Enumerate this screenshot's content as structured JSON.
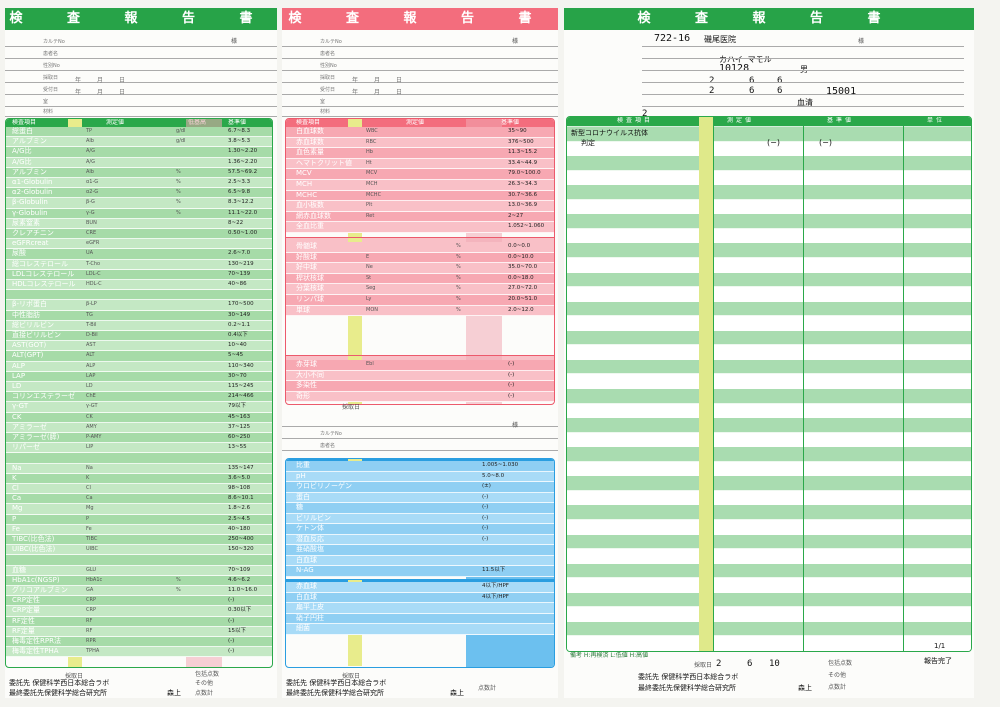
{
  "form_title": "検 査 報 告 書",
  "panel1": {
    "info_labels": [
      "カルテNo",
      "患者名",
      "性別No",
      "採取日",
      "受付日",
      "室",
      "材料"
    ],
    "date_labels": [
      "年",
      "月",
      "日"
    ],
    "sama": "様",
    "col_headers": [
      "検査項目",
      "測定値",
      "低基高",
      "基準値"
    ],
    "rows": [
      {
        "name": "総蛋白",
        "code": "TP",
        "unit": "g/dl",
        "ref": "6.7~8.3"
      },
      {
        "name": "アルブミン",
        "code": "Alb",
        "unit": "g/dl",
        "ref": "3.8~5.3"
      },
      {
        "name": "A/G比",
        "code": "A/G",
        "unit": "",
        "ref": "1.30~2.20"
      },
      {
        "name": "A/G比",
        "code": "A/G",
        "unit": "",
        "ref": "1.36~2.20"
      },
      {
        "name": "アルブミン",
        "code": "Alb",
        "unit": "%",
        "ref": "57.5~69.2"
      },
      {
        "name": "α1-Globulin",
        "code": "α1-G",
        "unit": "%",
        "ref": "2.5~3.3"
      },
      {
        "name": "α2-Globulin",
        "code": "α2-G",
        "unit": "%",
        "ref": "6.5~9.8"
      },
      {
        "name": "β-Globulin",
        "code": "β-G",
        "unit": "%",
        "ref": "8.3~12.2"
      },
      {
        "name": "γ-Globulin",
        "code": "γ-G",
        "unit": "%",
        "ref": "11.1~22.0"
      },
      {
        "name": "尿素窒素",
        "code": "BUN",
        "unit": "",
        "ref": "8~22"
      },
      {
        "name": "クレアチニン",
        "code": "CRE",
        "unit": "",
        "ref": "0.50~1.00"
      },
      {
        "name": "eGFRcreat",
        "code": "eGFR",
        "unit": "",
        "ref": ""
      },
      {
        "name": "尿酸",
        "code": "UA",
        "unit": "",
        "ref": "2.6~7.0"
      },
      {
        "name": "総コレステロール",
        "code": "T-Cho",
        "unit": "",
        "ref": "130~219"
      },
      {
        "name": "LDLコレステロール",
        "code": "LDL-C",
        "unit": "",
        "ref": "70~139"
      },
      {
        "name": "HDLコレステロール",
        "code": "HDL-C",
        "unit": "",
        "ref": "40~86"
      },
      {
        "name": "",
        "code": "",
        "unit": "",
        "ref": ""
      },
      {
        "name": "β-リポ蛋白",
        "code": "β-LP",
        "unit": "",
        "ref": "170~500"
      },
      {
        "name": "中性脂肪",
        "code": "TG",
        "unit": "",
        "ref": "30~149"
      },
      {
        "name": "総ビリルビン",
        "code": "T-Bil",
        "unit": "",
        "ref": "0.2~1.1"
      },
      {
        "name": "直接ビリルビン",
        "code": "D-Bil",
        "unit": "",
        "ref": "0.4以下"
      },
      {
        "name": "AST(GOT)",
        "code": "AST",
        "unit": "",
        "ref": "10~40"
      },
      {
        "name": "ALT(GPT)",
        "code": "ALT",
        "unit": "",
        "ref": "5~45"
      },
      {
        "name": "ALP",
        "code": "ALP",
        "unit": "",
        "ref": "110~340"
      },
      {
        "name": "LAP",
        "code": "LAP",
        "unit": "",
        "ref": "30~70"
      },
      {
        "name": "LD",
        "code": "LD",
        "unit": "",
        "ref": "115~245"
      },
      {
        "name": "コリンエステラーゼ",
        "code": "ChE",
        "unit": "",
        "ref": "214~466"
      },
      {
        "name": "γ-GT",
        "code": "γ-GT",
        "unit": "",
        "ref": "79以下"
      },
      {
        "name": "CK",
        "code": "CK",
        "unit": "",
        "ref": "45~163"
      },
      {
        "name": "アミラーゼ",
        "code": "AMY",
        "unit": "",
        "ref": "37~125"
      },
      {
        "name": "アミラーゼ(膵)",
        "code": "P-AMY",
        "unit": "",
        "ref": "60~250"
      },
      {
        "name": "リパーゼ",
        "code": "LIP",
        "unit": "",
        "ref": "13~55"
      },
      {
        "name": "",
        "code": "",
        "unit": "",
        "ref": ""
      },
      {
        "name": "Na",
        "code": "Na",
        "unit": "",
        "ref": "135~147"
      },
      {
        "name": "K",
        "code": "K",
        "unit": "",
        "ref": "3.6~5.0"
      },
      {
        "name": "Cl",
        "code": "Cl",
        "unit": "",
        "ref": "98~108"
      },
      {
        "name": "Ca",
        "code": "Ca",
        "unit": "",
        "ref": "8.6~10.1"
      },
      {
        "name": "Mg",
        "code": "Mg",
        "unit": "",
        "ref": "1.8~2.6"
      },
      {
        "name": "P",
        "code": "P",
        "unit": "",
        "ref": "2.5~4.5"
      },
      {
        "name": "Fe",
        "code": "Fe",
        "unit": "",
        "ref": "40~180"
      },
      {
        "name": "TIBC(比色法)",
        "code": "TIBC",
        "unit": "",
        "ref": "250~400"
      },
      {
        "name": "UIBC(比色法)",
        "code": "UIBC",
        "unit": "",
        "ref": "150~320"
      },
      {
        "name": "",
        "code": "",
        "unit": "",
        "ref": ""
      },
      {
        "name": "血糖",
        "code": "GLU",
        "unit": "",
        "ref": "70~109"
      },
      {
        "name": "HbA1c(NGSP)",
        "code": "HbA1c",
        "unit": "%",
        "ref": "4.6~6.2"
      },
      {
        "name": "グリコアルブミン",
        "code": "GA",
        "unit": "%",
        "ref": "11.0~16.0"
      },
      {
        "name": "CRP定性",
        "code": "CRP",
        "unit": "",
        "ref": "(-)"
      },
      {
        "name": "CRP定量",
        "code": "CRP",
        "unit": "",
        "ref": "0.30以下"
      },
      {
        "name": "RF定性",
        "code": "RF",
        "unit": "",
        "ref": "(-)"
      },
      {
        "name": "RF定量",
        "code": "RF",
        "unit": "",
        "ref": "15以下"
      },
      {
        "name": "梅毒定性RPR法",
        "code": "RPR",
        "unit": "",
        "ref": "(-)"
      },
      {
        "name": "梅毒定性TPHA",
        "code": "TPHA",
        "unit": "",
        "ref": "(-)"
      }
    ],
    "footer": {
      "saishu": "採取日",
      "itaku": "委託先 保健科学西日本総合ラボ",
      "saishu_itaku": "最終委託先保健科学総合研究所",
      "tantou": "森上",
      "tokubetsu": "点数計",
      "sonota": "その他",
      "hokatsu": "包括点数"
    }
  },
  "panel2": {
    "info_labels": [
      "カルテNo",
      "患者名",
      "性別No",
      "採取日",
      "受付日",
      "室",
      "材料"
    ],
    "date_labels": [
      "年",
      "月",
      "日"
    ],
    "sama": "様",
    "col_headers": [
      "検査項目",
      "測定値",
      "基準値"
    ],
    "rows_blood": [
      {
        "name": "白血球数",
        "code": "WBC",
        "ref": "35~90"
      },
      {
        "name": "赤血球数",
        "code": "RBC",
        "ref": "376~500"
      },
      {
        "name": "血色素量",
        "code": "Hb",
        "ref": "11.3~15.2"
      },
      {
        "name": "ヘマトクリット値",
        "code": "Ht",
        "ref": "33.4~44.9"
      },
      {
        "name": "MCV",
        "code": "MCV",
        "ref": "79.0~100.0"
      },
      {
        "name": "MCH",
        "code": "MCH",
        "ref": "26.3~34.3"
      },
      {
        "name": "MCHC",
        "code": "MCHC",
        "ref": "30.7~36.6"
      },
      {
        "name": "血小板数",
        "code": "Plt",
        "ref": "13.0~36.9"
      },
      {
        "name": "網赤血球数",
        "code": "Ret",
        "ref": "2~27"
      },
      {
        "name": "全血比重",
        "code": "",
        "ref": "1.052~1.060"
      }
    ],
    "rows_diff": [
      {
        "name": "骨髄球",
        "code": "",
        "unit": "%",
        "ref": "0.0~0.0"
      },
      {
        "name": "好酸球",
        "code": "E",
        "unit": "%",
        "ref": "0.0~10.0"
      },
      {
        "name": "好中球",
        "code": "Ne",
        "unit": "%",
        "ref": "35.0~70.0"
      },
      {
        "name": "桿状核球",
        "code": "St",
        "unit": "%",
        "ref": "0.0~18.0"
      },
      {
        "name": "分葉核球",
        "code": "Seg",
        "unit": "%",
        "ref": "27.0~72.0"
      },
      {
        "name": "リンパ球",
        "code": "Ly",
        "unit": "%",
        "ref": "20.0~51.0"
      },
      {
        "name": "単球",
        "code": "MON",
        "unit": "%",
        "ref": "2.0~12.0"
      }
    ],
    "rows_other": [
      {
        "name": "赤芽球",
        "code": "Ebl",
        "ref": "(-)"
      },
      {
        "name": "大小不同",
        "code": "",
        "ref": "(-)"
      },
      {
        "name": "多染性",
        "code": "",
        "ref": "(-)"
      },
      {
        "name": "奇形",
        "code": "",
        "ref": "(-)"
      }
    ],
    "rows_urine": [
      {
        "name": "比重",
        "ref": "1.005~1.030"
      },
      {
        "name": "pH",
        "ref": "5.0~8.0"
      },
      {
        "name": "ウロビリノーゲン",
        "ref": "(±)"
      },
      {
        "name": "蛋白",
        "ref": "(-)"
      },
      {
        "name": "糖",
        "ref": "(-)"
      },
      {
        "name": "ビリルビン",
        "ref": "(-)"
      },
      {
        "name": "ケトン体",
        "ref": "(-)"
      },
      {
        "name": "潜血反応",
        "ref": "(-)"
      },
      {
        "name": "亜硝酸塩",
        "ref": ""
      },
      {
        "name": "白血球",
        "ref": ""
      },
      {
        "name": "N-AG",
        "ref": "11.5以下"
      }
    ],
    "rows_sediment": [
      {
        "name": "赤血球",
        "ref": "4以下/HPF"
      },
      {
        "name": "白血球",
        "ref": "4以下/HPF"
      },
      {
        "name": "扁平上皮",
        "ref": ""
      },
      {
        "name": "硝子円柱",
        "ref": ""
      },
      {
        "name": "細菌",
        "ref": ""
      }
    ],
    "footer": {
      "saishu": "採取日",
      "itaku": "委託先 保健科学西日本総合ラボ",
      "saishu_itaku": "最終委託先保健科学総合研究所",
      "tantou": "森上",
      "tokubetsu": "点数計"
    }
  },
  "panel3": {
    "code": "722-16",
    "hospital": "磯尾医院",
    "patient_kana": "カハイ マモル",
    "patient_no": "10128",
    "sex": "男",
    "collect_date": {
      "y": "2",
      "m": "6",
      "d": "6"
    },
    "receive_date": {
      "y": "2",
      "m": "6",
      "d": "6"
    },
    "receipt_no": "15001",
    "material": "血清",
    "page_mark": "2",
    "col_headers": [
      "検査項目",
      "測定値",
      "基準値",
      "単位"
    ],
    "test_title": "新型コロナウイルス抗体",
    "test_sub": "判定",
    "result": "(−)",
    "reference": "(−)",
    "remarks": "備考 H:再検済 L:低値 H:高値",
    "page": "1/1",
    "report_done": "報告完了",
    "footer": {
      "saishu": "採取日",
      "saishu_date": {
        "y": "2",
        "m": "6",
        "d": "10"
      },
      "itaku": "委託先 保健科学西日本総合ラボ",
      "saishu_itaku": "最終委託先保健科学総合研究所",
      "tantou": "森上",
      "hokatsu": "包括点数",
      "sonota": "その他",
      "tokubetsu": "点数計"
    }
  }
}
